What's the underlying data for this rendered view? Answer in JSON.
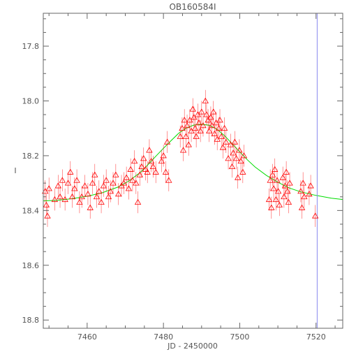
{
  "chart_data": {
    "type": "scatter",
    "title": "OB160584I",
    "xlabel": "JD - 2450000",
    "ylabel": "I",
    "xlim": [
      7448.5,
      7527.0
    ],
    "ylim": [
      18.83,
      17.68
    ],
    "y_inverted": true,
    "grid": false,
    "x_ticks": [
      7460,
      7480,
      7500,
      7520
    ],
    "y_ticks": [
      17.8,
      18.0,
      18.2,
      18.4,
      18.6,
      18.8
    ],
    "x_tick_labels": [
      "7460",
      "7480",
      "7500",
      "7520"
    ],
    "y_tick_labels": [
      "17.8",
      "18.0",
      "18.2",
      "18.4",
      "18.6",
      "18.8"
    ],
    "series": [
      {
        "kind": "points",
        "marker": "triangle",
        "color": "#ff0000",
        "points": [
          [
            7449.0,
            18.33,
            0.04
          ],
          [
            7449.3,
            18.38,
            0.04
          ],
          [
            7449.6,
            18.42,
            0.04
          ],
          [
            7450.0,
            18.32,
            0.04
          ],
          [
            7451.5,
            18.36,
            0.04
          ],
          [
            7452.4,
            18.31,
            0.04
          ],
          [
            7452.9,
            18.35,
            0.04
          ],
          [
            7453.5,
            18.29,
            0.04
          ],
          [
            7454.2,
            18.36,
            0.04
          ],
          [
            7455.0,
            18.3,
            0.04
          ],
          [
            7455.6,
            18.26,
            0.04
          ],
          [
            7456.1,
            18.35,
            0.04
          ],
          [
            7456.7,
            18.32,
            0.04
          ],
          [
            7457.3,
            18.29,
            0.04
          ],
          [
            7458.0,
            18.37,
            0.04
          ],
          [
            7458.6,
            18.35,
            0.04
          ],
          [
            7459.4,
            18.31,
            0.04
          ],
          [
            7460.2,
            18.34,
            0.04
          ],
          [
            7460.8,
            18.39,
            0.04
          ],
          [
            7461.4,
            18.3,
            0.04
          ],
          [
            7462.0,
            18.27,
            0.04
          ],
          [
            7462.5,
            18.35,
            0.04
          ],
          [
            7463.1,
            18.33,
            0.04
          ],
          [
            7463.7,
            18.37,
            0.04
          ],
          [
            7464.3,
            18.31,
            0.04
          ],
          [
            7465.0,
            18.29,
            0.04
          ],
          [
            7465.6,
            18.35,
            0.04
          ],
          [
            7466.1,
            18.33,
            0.04
          ],
          [
            7466.8,
            18.3,
            0.04
          ],
          [
            7467.5,
            18.27,
            0.04
          ],
          [
            7468.2,
            18.34,
            0.04
          ],
          [
            7469.0,
            18.31,
            0.04
          ],
          [
            7469.6,
            18.3,
            0.04
          ],
          [
            7470.3,
            18.28,
            0.04
          ],
          [
            7470.9,
            18.32,
            0.04
          ],
          [
            7471.4,
            18.25,
            0.04
          ],
          [
            7471.9,
            18.29,
            0.04
          ],
          [
            7472.4,
            18.22,
            0.04
          ],
          [
            7472.8,
            18.3,
            0.04
          ],
          [
            7473.3,
            18.37,
            0.04
          ],
          [
            7473.8,
            18.27,
            0.04
          ],
          [
            7474.3,
            18.24,
            0.04
          ],
          [
            7474.8,
            18.21,
            0.04
          ],
          [
            7475.3,
            18.25,
            0.04
          ],
          [
            7475.8,
            18.26,
            0.04
          ],
          [
            7476.3,
            18.18,
            0.04
          ],
          [
            7476.8,
            18.22,
            0.04
          ],
          [
            7477.3,
            18.24,
            0.04
          ],
          [
            7478.0,
            18.26,
            0.04
          ],
          [
            7479.5,
            18.22,
            0.04
          ],
          [
            7480.0,
            18.2,
            0.04
          ],
          [
            7480.6,
            18.26,
            0.04
          ],
          [
            7481.0,
            18.15,
            0.04
          ],
          [
            7481.4,
            18.29,
            0.04
          ],
          [
            7484.4,
            18.13,
            0.04
          ],
          [
            7484.9,
            18.1,
            0.04
          ],
          [
            7485.2,
            18.18,
            0.04
          ],
          [
            7485.5,
            18.07,
            0.04
          ],
          [
            7485.9,
            18.13,
            0.04
          ],
          [
            7486.2,
            18.09,
            0.04
          ],
          [
            7486.6,
            18.16,
            0.04
          ],
          [
            7486.9,
            18.07,
            0.04
          ],
          [
            7487.3,
            18.11,
            0.04
          ],
          [
            7487.7,
            18.03,
            0.04
          ],
          [
            7488.0,
            18.06,
            0.04
          ],
          [
            7488.3,
            18.1,
            0.04
          ],
          [
            7488.6,
            18.13,
            0.04
          ],
          [
            7489.0,
            18.05,
            0.04
          ],
          [
            7489.3,
            18.08,
            0.04
          ],
          [
            7489.7,
            18.11,
            0.04
          ],
          [
            7490.0,
            18.04,
            0.04
          ],
          [
            7490.4,
            18.09,
            0.04
          ],
          [
            7491.0,
            18.0,
            0.04
          ],
          [
            7491.3,
            18.05,
            0.04
          ],
          [
            7491.7,
            18.07,
            0.04
          ],
          [
            7492.0,
            18.11,
            0.04
          ],
          [
            7492.4,
            18.06,
            0.04
          ],
          [
            7492.7,
            18.09,
            0.04
          ],
          [
            7493.1,
            18.04,
            0.04
          ],
          [
            7493.4,
            18.12,
            0.04
          ],
          [
            7493.8,
            18.08,
            0.04
          ],
          [
            7494.1,
            18.14,
            0.04
          ],
          [
            7494.5,
            18.1,
            0.04
          ],
          [
            7494.8,
            18.07,
            0.04
          ],
          [
            7495.2,
            18.13,
            0.04
          ],
          [
            7495.6,
            18.17,
            0.04
          ],
          [
            7496.0,
            18.1,
            0.04
          ],
          [
            7496.4,
            18.15,
            0.04
          ],
          [
            7497.0,
            18.21,
            0.04
          ],
          [
            7497.6,
            18.16,
            0.04
          ],
          [
            7498.0,
            18.24,
            0.04
          ],
          [
            7498.3,
            18.19,
            0.04
          ],
          [
            7498.7,
            18.15,
            0.04
          ],
          [
            7499.1,
            18.21,
            0.04
          ],
          [
            7499.5,
            18.28,
            0.04
          ],
          [
            7499.9,
            18.18,
            0.04
          ],
          [
            7500.3,
            18.22,
            0.04
          ],
          [
            7500.8,
            18.26,
            0.04
          ],
          [
            7501.1,
            18.2,
            0.04
          ],
          [
            7507.7,
            18.36,
            0.04
          ],
          [
            7508.0,
            18.29,
            0.04
          ],
          [
            7508.3,
            18.39,
            0.04
          ],
          [
            7508.6,
            18.27,
            0.04
          ],
          [
            7508.9,
            18.32,
            0.04
          ],
          [
            7509.2,
            18.25,
            0.04
          ],
          [
            7509.5,
            18.36,
            0.04
          ],
          [
            7509.8,
            18.29,
            0.04
          ],
          [
            7510.1,
            18.33,
            0.04
          ],
          [
            7510.4,
            18.38,
            0.04
          ],
          [
            7511.3,
            18.28,
            0.04
          ],
          [
            7511.6,
            18.35,
            0.04
          ],
          [
            7511.9,
            18.31,
            0.04
          ],
          [
            7512.2,
            18.26,
            0.04
          ],
          [
            7512.5,
            18.33,
            0.04
          ],
          [
            7512.8,
            18.37,
            0.04
          ],
          [
            7513.1,
            18.3,
            0.04
          ],
          [
            7516.0,
            18.33,
            0.04
          ],
          [
            7516.3,
            18.39,
            0.04
          ],
          [
            7516.6,
            18.3,
            0.04
          ],
          [
            7516.9,
            18.35,
            0.04
          ],
          [
            7518.2,
            18.34,
            0.04
          ],
          [
            7518.6,
            18.31,
            0.04
          ],
          [
            7519.8,
            18.42,
            0.04
          ]
        ]
      },
      {
        "kind": "line",
        "color": "#00dd00",
        "x": [
          7448.5,
          7452,
          7456,
          7460,
          7464,
          7468,
          7471,
          7474,
          7476,
          7478,
          7480,
          7482,
          7484,
          7486,
          7488,
          7490,
          7492,
          7494,
          7496,
          7498,
          7500,
          7502,
          7504,
          7507,
          7510,
          7513,
          7516,
          7520,
          7524,
          7527
        ],
        "y": [
          18.365,
          18.363,
          18.357,
          18.348,
          18.335,
          18.315,
          18.292,
          18.26,
          18.232,
          18.202,
          18.173,
          18.145,
          18.118,
          18.099,
          18.088,
          18.085,
          18.089,
          18.103,
          18.127,
          18.156,
          18.186,
          18.215,
          18.241,
          18.272,
          18.297,
          18.318,
          18.332,
          18.345,
          18.355,
          18.36
        ]
      },
      {
        "kind": "vline",
        "color": "#8888ee",
        "x": 7520.3
      }
    ]
  }
}
